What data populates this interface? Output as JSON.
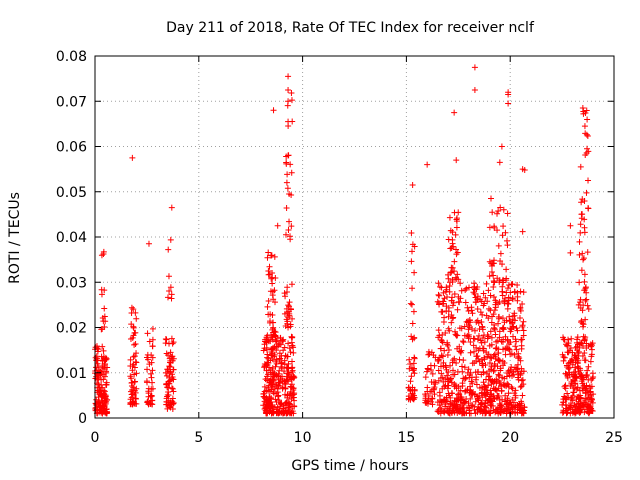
{
  "chart_data": {
    "type": "scatter",
    "title": "Day 211 of 2018, Rate Of TEC Index for receiver nclf",
    "xlabel": "GPS time / hours",
    "ylabel": "ROTI / TECUs",
    "xlim": [
      0,
      25
    ],
    "ylim": [
      0,
      0.08
    ],
    "x_ticks": [
      0,
      5,
      10,
      15,
      20,
      25
    ],
    "x_tick_labels": [
      "0",
      "5",
      "10",
      "15",
      "20",
      "25"
    ],
    "y_ticks": [
      0,
      0.01,
      0.02,
      0.03,
      0.04,
      0.05,
      0.06,
      0.07,
      0.08
    ],
    "y_tick_labels": [
      "0",
      "0.01",
      "0.02",
      "0.03",
      "0.04",
      "0.05",
      "0.06",
      "0.07",
      "0.08"
    ],
    "grid": true,
    "marker": "+",
    "marker_color": "#ff0000",
    "series": [
      {
        "name": "ROTI",
        "clusters": [
          {
            "x": [
              0.0,
              0.6
            ],
            "y": [
              0.001,
              0.016
            ],
            "n": 140
          },
          {
            "x": [
              0.3,
              0.5
            ],
            "y": [
              0.019,
              0.038
            ],
            "n": 14
          },
          {
            "x": [
              1.7,
              2.0
            ],
            "y": [
              0.003,
              0.025
            ],
            "n": 60
          },
          {
            "x": [
              2.5,
              2.8
            ],
            "y": [
              0.003,
              0.02
            ],
            "n": 40
          },
          {
            "x": [
              3.4,
              3.8
            ],
            "y": [
              0.002,
              0.018
            ],
            "n": 70
          },
          {
            "x": [
              3.5,
              3.7
            ],
            "y": [
              0.025,
              0.04
            ],
            "n": 8
          },
          {
            "x": [
              8.1,
              9.6
            ],
            "y": [
              0.001,
              0.018
            ],
            "n": 320
          },
          {
            "x": [
              8.3,
              8.7
            ],
            "y": [
              0.018,
              0.038
            ],
            "n": 40
          },
          {
            "x": [
              9.1,
              9.5
            ],
            "y": [
              0.02,
              0.03
            ],
            "n": 25
          },
          {
            "x": [
              9.2,
              9.5
            ],
            "y": [
              0.04,
              0.075
            ],
            "n": 20
          },
          {
            "x": [
              15.1,
              15.4
            ],
            "y": [
              0.004,
              0.015
            ],
            "n": 35
          },
          {
            "x": [
              15.2,
              15.4
            ],
            "y": [
              0.016,
              0.042
            ],
            "n": 15
          },
          {
            "x": [
              15.9,
              16.4
            ],
            "y": [
              0.003,
              0.015
            ],
            "n": 40
          },
          {
            "x": [
              16.5,
              18.6
            ],
            "y": [
              0.001,
              0.03
            ],
            "n": 360
          },
          {
            "x": [
              17.0,
              17.5
            ],
            "y": [
              0.03,
              0.046
            ],
            "n": 35
          },
          {
            "x": [
              18.6,
              20.7
            ],
            "y": [
              0.001,
              0.03
            ],
            "n": 420
          },
          {
            "x": [
              19.0,
              19.9
            ],
            "y": [
              0.03,
              0.05
            ],
            "n": 40
          },
          {
            "x": [
              22.5,
              24.0
            ],
            "y": [
              0.001,
              0.018
            ],
            "n": 260
          },
          {
            "x": [
              23.3,
              23.8
            ],
            "y": [
              0.02,
              0.05
            ],
            "n": 45
          },
          {
            "x": [
              23.5,
              23.8
            ],
            "y": [
              0.05,
              0.068
            ],
            "n": 12
          }
        ],
        "points": [
          [
            1.8,
            0.0575
          ],
          [
            9.3,
            0.0755
          ],
          [
            9.3,
            0.0725
          ],
          [
            9.3,
            0.07
          ],
          [
            9.3,
            0.0655
          ],
          [
            8.6,
            0.068
          ],
          [
            9.3,
            0.058
          ],
          [
            9.35,
            0.0495
          ],
          [
            9.2,
            0.0405
          ],
          [
            9.4,
            0.0395
          ],
          [
            8.8,
            0.0425
          ],
          [
            2.6,
            0.0385
          ],
          [
            3.7,
            0.0465
          ],
          [
            18.3,
            0.0775
          ],
          [
            18.3,
            0.0725
          ],
          [
            17.3,
            0.0675
          ],
          [
            19.9,
            0.072
          ],
          [
            19.9,
            0.0715
          ],
          [
            19.9,
            0.0695
          ],
          [
            19.6,
            0.06
          ],
          [
            19.5,
            0.0565
          ],
          [
            16.0,
            0.056
          ],
          [
            17.4,
            0.057
          ],
          [
            20.6,
            0.055
          ],
          [
            20.7,
            0.0548
          ],
          [
            23.5,
            0.0685
          ],
          [
            23.6,
            0.0645
          ],
          [
            23.7,
            0.0595
          ],
          [
            23.4,
            0.0555
          ],
          [
            15.3,
            0.0515
          ],
          [
            20.6,
            0.0412
          ],
          [
            22.9,
            0.0425
          ],
          [
            22.9,
            0.0365
          ]
        ]
      }
    ]
  }
}
